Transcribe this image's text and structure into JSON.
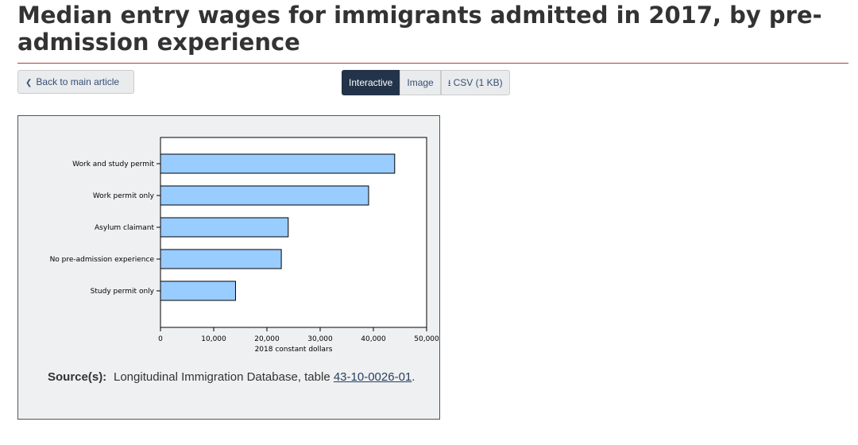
{
  "page": {
    "title": "Median entry wages for immigrants admitted in 2017, by pre-admission experience"
  },
  "toolbar": {
    "back_label": "Back to main article",
    "view_options": [
      "Interactive",
      "Image"
    ],
    "csv_label": "CSV (1 KB)",
    "active_view": "Interactive"
  },
  "colors": {
    "bar_fill": "#99ccff",
    "bar_stroke": "#000000",
    "accent_rule": "#af3c43",
    "active_button": "#23344a"
  },
  "chart_data": {
    "type": "bar",
    "orientation": "horizontal",
    "categories": [
      "Work and study permit",
      "Work permit only",
      "Asylum claimant",
      "No pre-admission experience",
      "Study permit only"
    ],
    "values": [
      44000,
      39100,
      24000,
      22700,
      14100
    ],
    "xlabel": "2018 constant dollars",
    "ylabel": "",
    "xlim": [
      0,
      50000
    ],
    "xticks": [
      0,
      10000,
      20000,
      30000,
      40000,
      50000
    ],
    "xtick_labels": [
      "0",
      "10,000",
      "20,000",
      "30,000",
      "40,000",
      "50,000"
    ],
    "grid": false,
    "legend": "none"
  },
  "source": {
    "label": "Source(s):",
    "text": "Longitudinal Immigration Database, table ",
    "link_text": "43-10-0026-01",
    "suffix": "."
  }
}
